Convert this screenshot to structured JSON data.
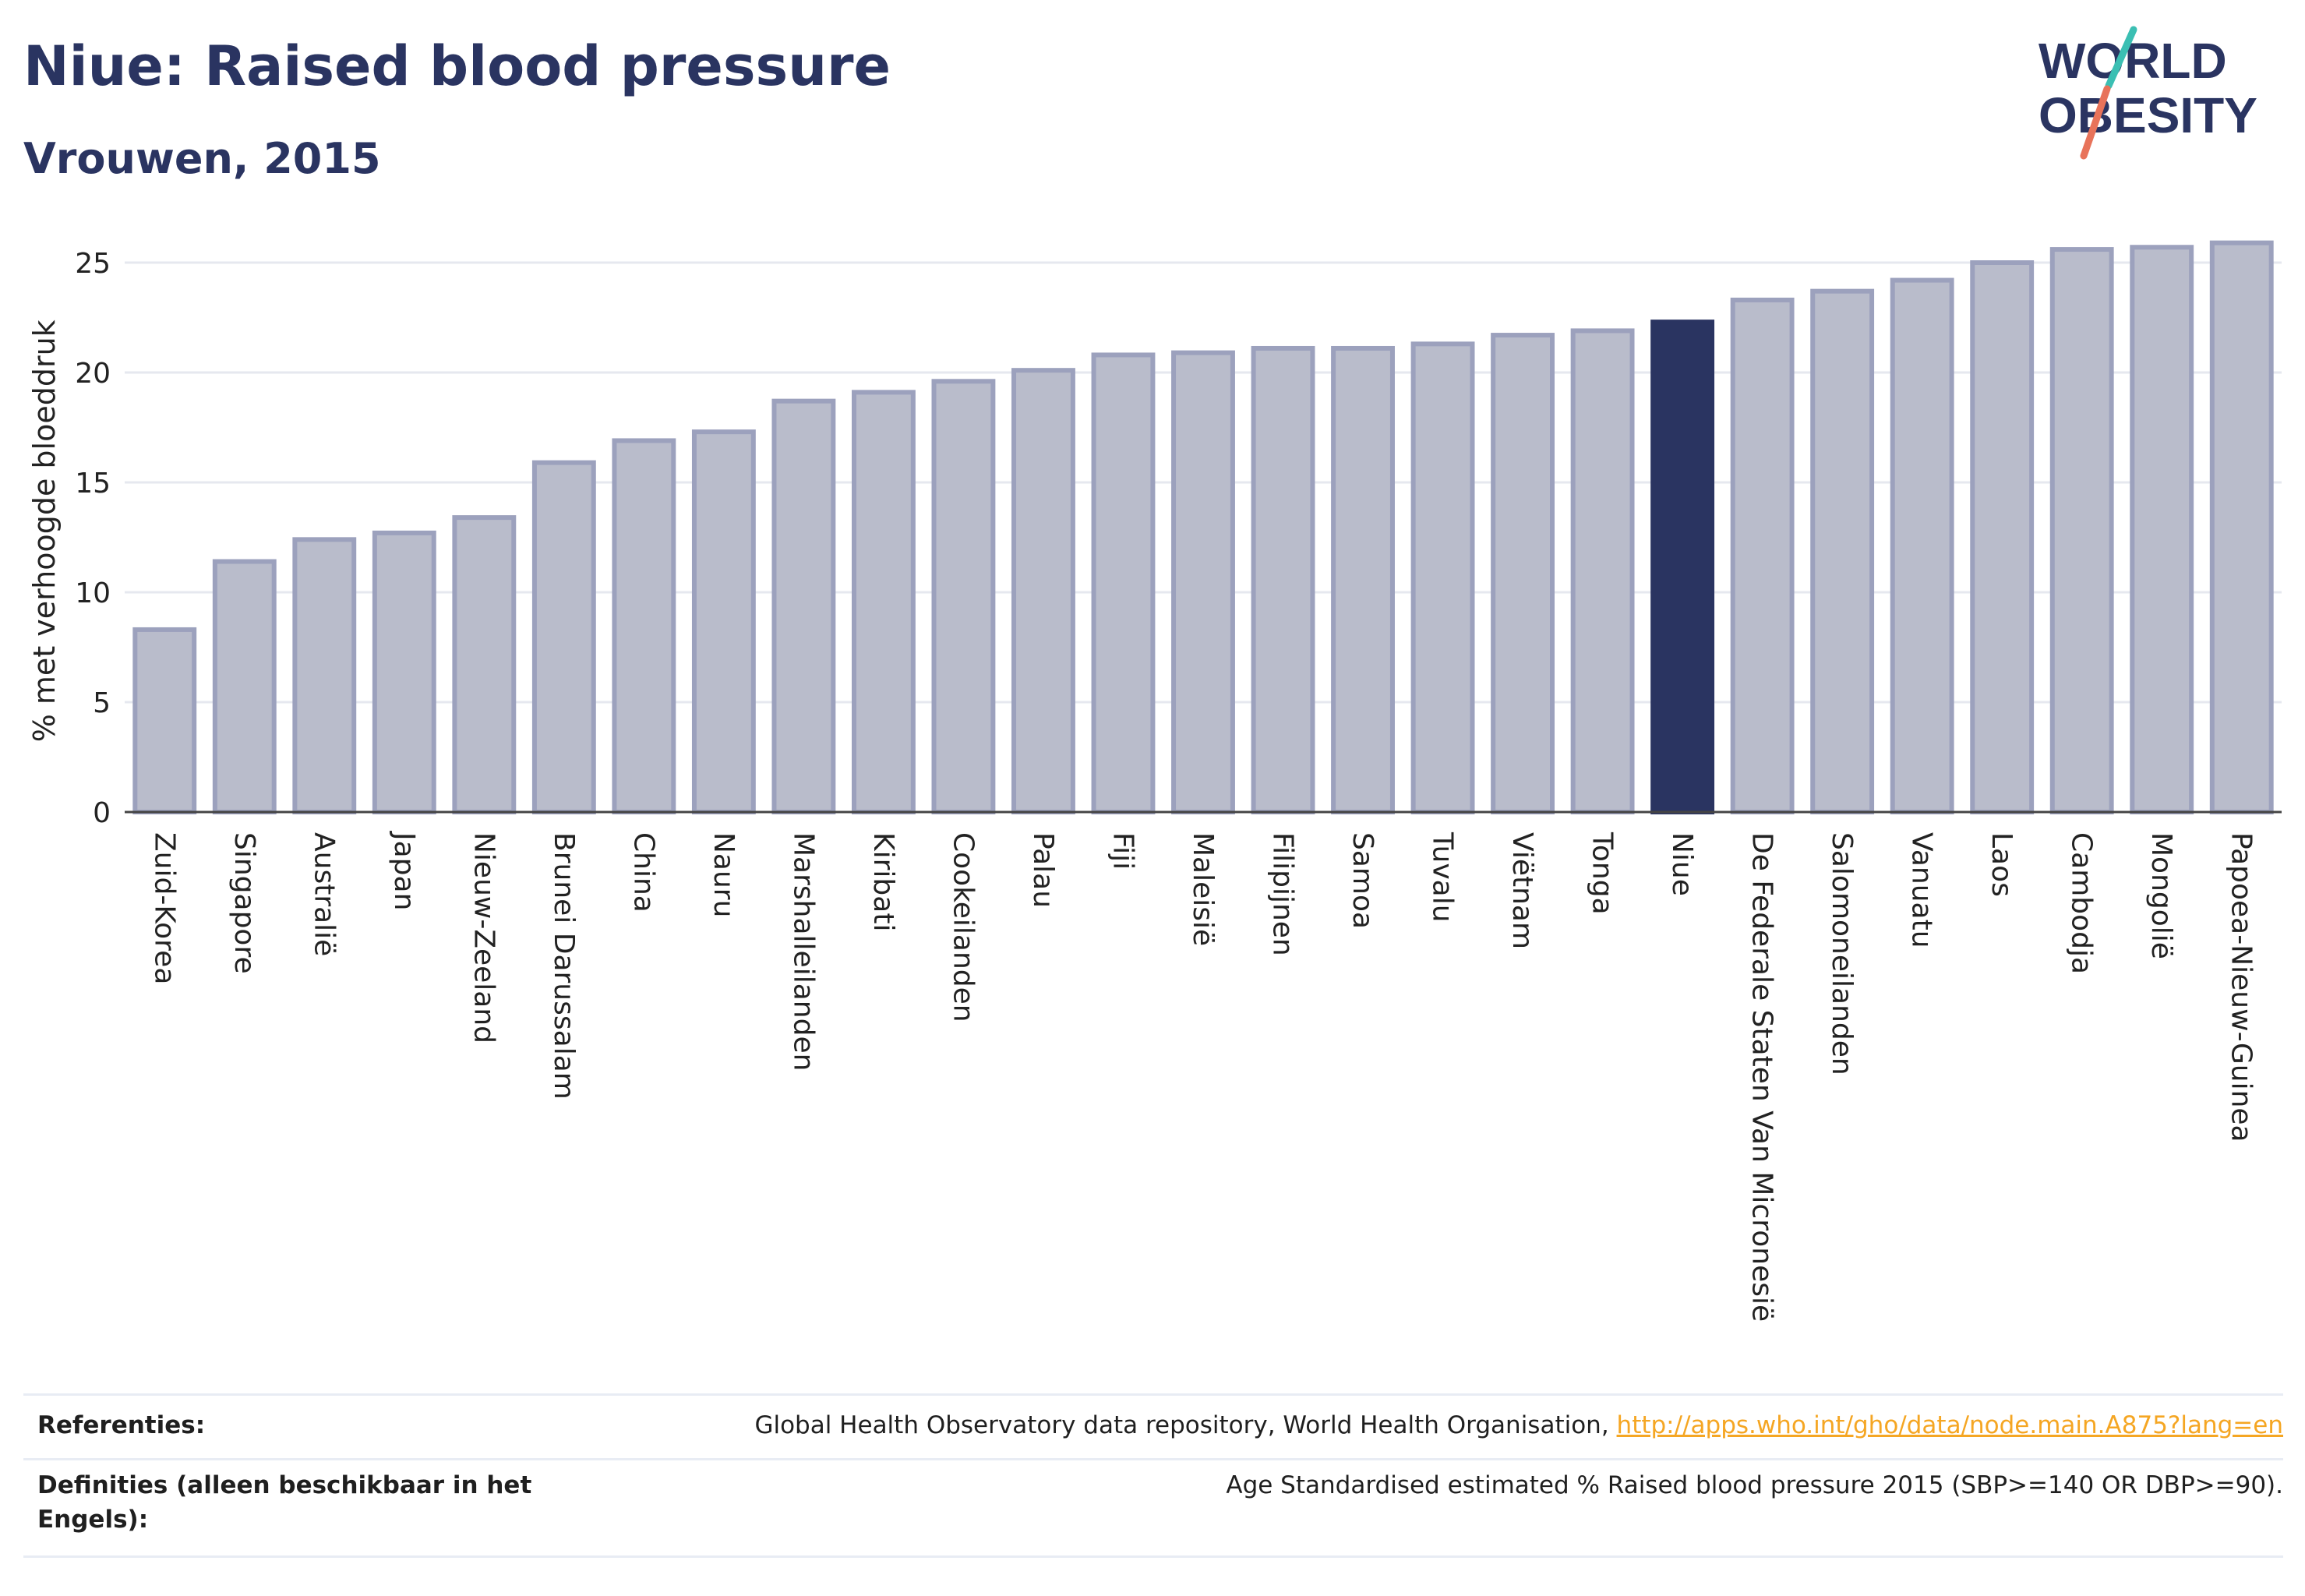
{
  "header": {
    "title": "Niue: Raised blood pressure",
    "subtitle": "Vrouwen, 2015"
  },
  "logo": {
    "line1": "WORLD",
    "line2": "OBESITY",
    "colors": {
      "text": "#2a3461",
      "slash_top": "#3bbfb3",
      "slash_bottom": "#e8735a"
    }
  },
  "chart_data": {
    "type": "bar",
    "ylabel": "% met verhoogde bloeddruk",
    "ylim": [
      0,
      27
    ],
    "yticks": [
      0,
      5,
      10,
      15,
      20,
      25
    ],
    "grid": true,
    "highlight": "Niue",
    "colors": {
      "bar": "#b9bccb",
      "bar_edge": "#9ca1bd",
      "highlight": "#2a3461"
    },
    "categories": [
      "Zuid-Korea",
      "Singapore",
      "Australië",
      "Japan",
      "Nieuw-Zeeland",
      "Brunei Darussalam",
      "China",
      "Nauru",
      "Marshalleilanden",
      "Kiribati",
      "Cookeilanden",
      "Palau",
      "Fiji",
      "Maleisië",
      "Filipijnen",
      "Samoa",
      "Tuvalu",
      "Viëtnam",
      "Tonga",
      "Niue",
      "De Federale Staten Van Micronesië",
      "Salomoneilanden",
      "Vanuatu",
      "Laos",
      "Cambodja",
      "Mongolië",
      "Papoea-Nieuw-Guinea"
    ],
    "values": [
      8.3,
      11.4,
      12.4,
      12.7,
      13.4,
      15.9,
      16.9,
      17.3,
      18.7,
      19.1,
      19.6,
      20.1,
      20.8,
      20.9,
      21.1,
      21.1,
      21.3,
      21.7,
      21.9,
      22.3,
      23.3,
      23.7,
      24.2,
      25.0,
      25.6,
      25.7,
      25.9
    ]
  },
  "references": {
    "ref_label": "Referenties:",
    "ref_text": "Global Health Observatory data repository, World Health Organisation, ",
    "ref_link": "http://apps.who.int/gho/data/node.main.A875?lang=en",
    "def_label": "Definities (alleen beschikbaar in het Engels):",
    "def_text": "Age Standardised estimated % Raised blood pressure 2015 (SBP>=140 OR DBP>=90)."
  }
}
